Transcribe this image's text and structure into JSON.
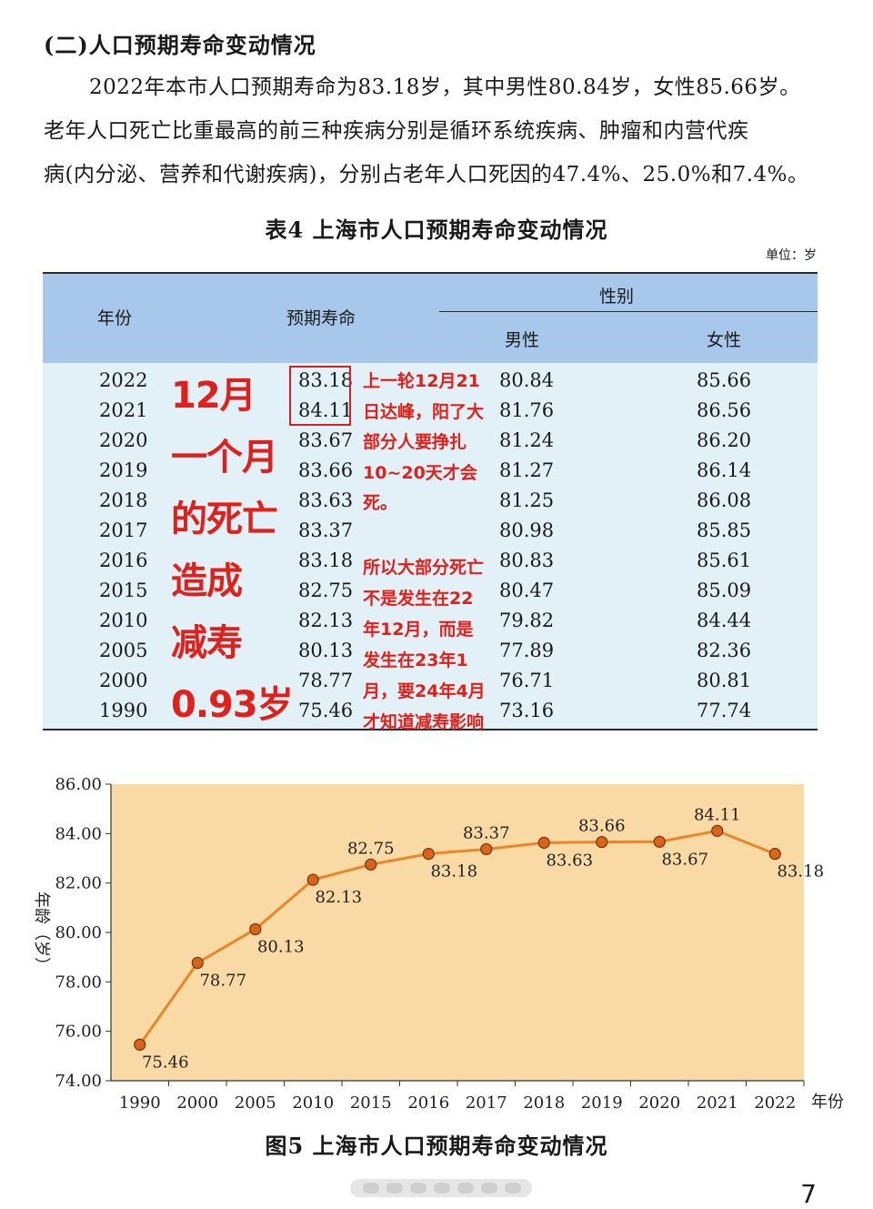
{
  "section_heading": "(二)人口预期寿命变动情况",
  "paragraph_lines": [
    "2022年本市人口预期寿命为83.18岁，其中男性80.84岁，女性85.66岁。",
    "老年人口死亡比重最高的前三种疾病分别是循环系统疾病、肿瘤和内营代疾",
    "病(内分泌、营养和代谢疾病)，分别占老年人口死因的47.4%、25.0%和7.4%。"
  ],
  "table": {
    "title": "表4  上海市人口预期寿命变动情况",
    "unit": "单位：岁",
    "headers": {
      "year": "年份",
      "life": "预期寿命",
      "gender": "性别",
      "male": "男性",
      "female": "女性"
    },
    "rows": [
      {
        "year": "2022",
        "life": "83.18",
        "male": "80.84",
        "female": "85.66"
      },
      {
        "year": "2021",
        "life": "84.11",
        "male": "81.76",
        "female": "86.56"
      },
      {
        "year": "2020",
        "life": "83.67",
        "male": "81.24",
        "female": "86.20"
      },
      {
        "year": "2019",
        "life": "83.66",
        "male": "81.27",
        "female": "86.14"
      },
      {
        "year": "2018",
        "life": "83.63",
        "male": "81.25",
        "female": "86.08"
      },
      {
        "year": "2017",
        "life": "83.37",
        "male": "80.98",
        "female": "85.85"
      },
      {
        "year": "2016",
        "life": "83.18",
        "male": "80.83",
        "female": "85.61"
      },
      {
        "year": "2015",
        "life": "82.75",
        "male": "80.47",
        "female": "85.09"
      },
      {
        "year": "2010",
        "life": "82.13",
        "male": "79.82",
        "female": "84.44"
      },
      {
        "year": "2005",
        "life": "80.13",
        "male": "77.89",
        "female": "82.36"
      },
      {
        "year": "2000",
        "life": "78.77",
        "male": "76.71",
        "female": "80.81"
      },
      {
        "year": "1990",
        "life": "75.46",
        "male": "73.16",
        "female": "77.74"
      }
    ]
  },
  "annotation": {
    "big_lines": [
      "12月",
      "一个月",
      "的死亡",
      "造成",
      "减寿",
      "0.93岁"
    ],
    "small_lines_a": [
      "上一轮12月21",
      "日达峰，阳了大",
      "部分人要挣扎",
      "10~20天才会",
      "死。"
    ],
    "small_lines_b": [
      "所以大部分死亡",
      "不是发生在22",
      "年12月，而是",
      "发生在23年1",
      "月，要24年4月",
      "才知道减寿影响"
    ],
    "color": "#e0201a"
  },
  "chart_data": {
    "type": "line",
    "title": "图5  上海市人口预期寿命变动情况",
    "xlabel": "年份",
    "ylabel": "年龄（岁）",
    "categories": [
      "1990",
      "2000",
      "2005",
      "2010",
      "2015",
      "2016",
      "2017",
      "2018",
      "2019",
      "2020",
      "2021",
      "2022"
    ],
    "values": [
      75.46,
      78.77,
      80.13,
      82.13,
      82.75,
      83.18,
      83.37,
      83.63,
      83.66,
      83.67,
      84.11,
      83.18
    ],
    "value_labels": [
      "75.46",
      "78.77",
      "80.13",
      "82.13",
      "82.75",
      "83.18",
      "83.37",
      "83.63",
      "83.66",
      "83.67",
      "84.11",
      "83.18"
    ],
    "label_position": [
      "below",
      "below",
      "below",
      "below",
      "above",
      "below",
      "above",
      "below",
      "above",
      "below",
      "above",
      "below"
    ],
    "ylim": [
      74,
      86
    ],
    "yticks": [
      "74.00",
      "76.00",
      "78.00",
      "80.00",
      "82.00",
      "84.00",
      "86.00"
    ],
    "grid": false,
    "line_color": "#e8872a",
    "marker_color": "#d9651a",
    "background_color": "#f9d9a4"
  },
  "page_number": "7"
}
